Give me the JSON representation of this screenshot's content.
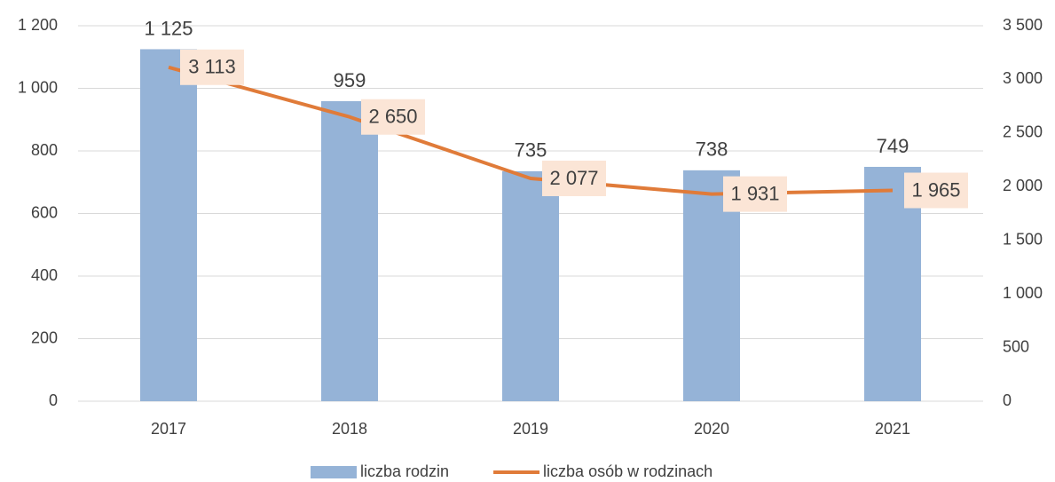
{
  "chart_data": {
    "type": "bar",
    "categories": [
      "2017",
      "2018",
      "2019",
      "2020",
      "2021"
    ],
    "series": [
      {
        "name": "liczba rodzin",
        "type": "bar",
        "color": "#95b3d7",
        "values": [
          1125,
          959,
          735,
          738,
          749
        ],
        "value_labels": [
          "1 125",
          "959",
          "735",
          "738",
          "749"
        ]
      },
      {
        "name": "liczba osób w rodzinach",
        "type": "line",
        "axis": "y2",
        "color": "#e07b39",
        "values": [
          3113,
          2650,
          2077,
          1931,
          1965
        ],
        "value_labels": [
          "3 113",
          "2 650",
          "2 077",
          "1 931",
          "1 965"
        ]
      }
    ],
    "ylim": [
      0,
      1200
    ],
    "yticks": [
      0,
      200,
      400,
      600,
      800,
      {
        "value": 1000,
        "label": "1 000"
      },
      {
        "value": 1200,
        "label": "1 200"
      }
    ],
    "y2lim": [
      0,
      3500
    ],
    "y2ticks": [
      0,
      500,
      {
        "value": 1000,
        "label": "1 000"
      },
      {
        "value": 1500,
        "label": "1 500"
      },
      {
        "value": 2000,
        "label": "2 000"
      },
      {
        "value": 2500,
        "label": "2 500"
      },
      {
        "value": 3000,
        "label": "3 000"
      },
      {
        "value": 3500,
        "label": "3 500"
      }
    ],
    "grid": true,
    "legend": "bottom"
  }
}
